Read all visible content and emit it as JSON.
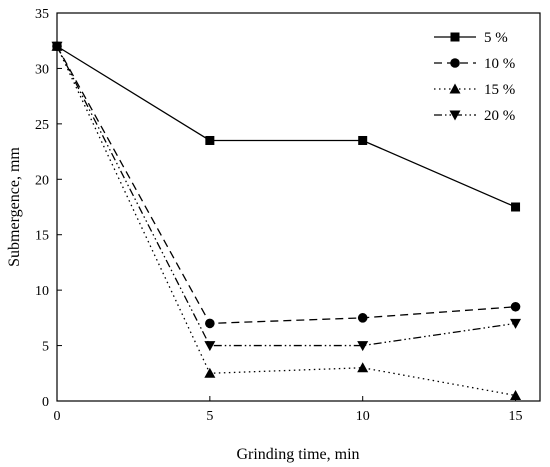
{
  "chart_data": {
    "type": "line",
    "title": "",
    "xlabel": "Grinding time, min",
    "ylabel": "Submergence, mm",
    "xlim": [
      0,
      15.8
    ],
    "ylim": [
      0,
      35
    ],
    "xticks": [
      0,
      5,
      10,
      15
    ],
    "yticks": [
      0,
      5,
      10,
      15,
      20,
      25,
      30,
      35
    ],
    "legend_position": "top-right",
    "grid": false,
    "x": [
      0,
      5,
      10,
      15
    ],
    "series": [
      {
        "name": "5 %",
        "values": [
          32,
          23.5,
          23.5,
          17.5
        ],
        "marker": "square",
        "dash": "solid"
      },
      {
        "name": "10 %",
        "values": [
          32,
          7,
          7.5,
          8.5
        ],
        "marker": "circle",
        "dash": "dashed"
      },
      {
        "name": "15 %",
        "values": [
          32,
          2.5,
          3,
          0.5
        ],
        "marker": "triangle-up",
        "dash": "dotted"
      },
      {
        "name": "20 %",
        "values": [
          32,
          5,
          5,
          7
        ],
        "marker": "triangle-down",
        "dash": "dash-dot-dot"
      }
    ]
  }
}
